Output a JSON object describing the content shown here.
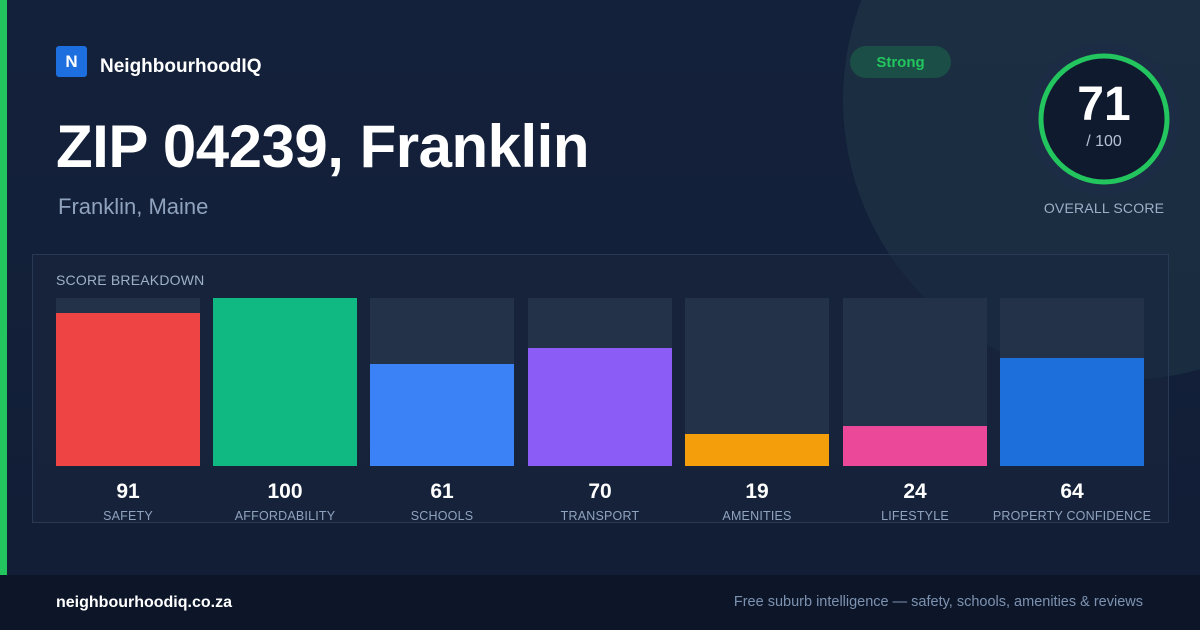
{
  "brand": {
    "logo_letter": "N",
    "name": "NeighbourhoodIQ"
  },
  "header": {
    "title": "ZIP 04239, Franklin",
    "subtitle": "Franklin, Maine"
  },
  "status_badge": {
    "label": "Strong",
    "color": "#22c55e"
  },
  "overall": {
    "score": "71",
    "max_label": "/ 100",
    "label": "OVERALL SCORE",
    "value": 71,
    "max": 100
  },
  "breakdown": {
    "title": "SCORE BREAKDOWN",
    "items": [
      {
        "label": "SAFETY",
        "value": "91",
        "score": 91,
        "color": "#ef4444"
      },
      {
        "label": "AFFORDABILITY",
        "value": "100",
        "score": 100,
        "color": "#10b981"
      },
      {
        "label": "SCHOOLS",
        "value": "61",
        "score": 61,
        "color": "#3b82f6"
      },
      {
        "label": "TRANSPORT",
        "value": "70",
        "score": 70,
        "color": "#8b5cf6"
      },
      {
        "label": "AMENITIES",
        "value": "19",
        "score": 19,
        "color": "#f59e0b"
      },
      {
        "label": "LIFESTYLE",
        "value": "24",
        "score": 24,
        "color": "#ec4899"
      },
      {
        "label": "PROPERTY CONFIDENCE",
        "value": "64",
        "score": 64,
        "color": "#1d6fdc"
      }
    ]
  },
  "footer": {
    "domain": "neighbourhoodiq.co.za",
    "tagline": "Free suburb intelligence — safety, schools, amenities & reviews"
  }
}
